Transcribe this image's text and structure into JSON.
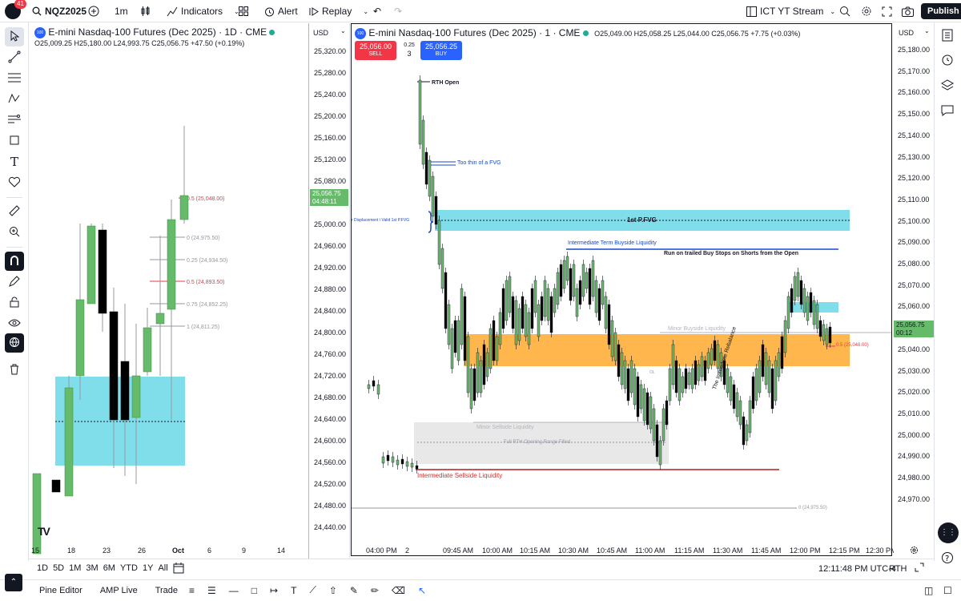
{
  "topbar": {
    "notif_count": "41",
    "symbol": "NQZ2025",
    "interval": "1m",
    "indicators": "Indicators",
    "alert": "Alert",
    "replay": "Replay",
    "layout_name": "ICT YT Stream",
    "publish": "Publish"
  },
  "left_chart": {
    "title": "E-mini Nasdaq-100 Futures (Dec 2025) · 1D · CME",
    "ohlc": "O25,009.25 H25,180.00 L24,993.75 C25,056.75 +47.50 (+0.19%)",
    "currency": "USD",
    "price_tag": "25,056.75",
    "countdown": "04:48:11",
    "dates": [
      "15",
      "18",
      "23",
      "26",
      "Oct",
      "6",
      "9",
      "14"
    ],
    "fib_labels": [
      "0.5 (25,048.00)",
      "0 (24,975.50)",
      "0.25 (24,934.50)",
      "0.5 (24,893.50)",
      "0.75 (24,852.25)",
      "1 (24,811.25)"
    ]
  },
  "price_axis_left": [
    "25,320.00",
    "25,280.00",
    "25,240.00",
    "25,200.00",
    "25,160.00",
    "25,120.00",
    "25,080.00",
    "25,000.00",
    "24,960.00",
    "24,920.00",
    "24,880.00",
    "24,840.00",
    "24,800.00",
    "24,760.00",
    "24,720.00",
    "24,680.00",
    "24,640.00",
    "24,600.00",
    "24,560.00",
    "24,520.00",
    "24,480.00",
    "24,440.00"
  ],
  "right_chart": {
    "title": "E-mini Nasdaq-100 Futures (Dec 2025) · 1 · CME",
    "ohlc": "O25,049.00 H25,058.25 L25,044.00 C25,056.75 +7.75 (+0.03%)",
    "currency": "USD",
    "sell_price": "25,056.00",
    "sell_label": "SELL",
    "spread": "0.25",
    "qty": "3",
    "buy_price": "25,056.25",
    "buy_label": "BUY",
    "price_tag": "25,056.75",
    "countdown": "00:12",
    "times": [
      "04:00 PM",
      "2",
      "09:45 AM",
      "10:00 AM",
      "10:15 AM",
      "10:30 AM",
      "10:45 AM",
      "11:00 AM",
      "11:15 AM",
      "11:30 AM",
      "11:45 AM",
      "12:00 PM",
      "12:15 PM",
      "12:30 PM"
    ],
    "annotations": {
      "rth_open": "RTH Open",
      "too_thin": "Too thin of a FVG",
      "displacement": "r Displacement \\ Valid 1st P.FVG",
      "first_pfvg": "1st P.FVG",
      "int_buyside": "Intermediate Term Buyside Liquidity",
      "run_on": "Run on trailed Buy Stops on Shorts from the Open",
      "minor_buyside": "Minor Buyside Liquidity",
      "minor_sellside": "Minor Sellside Liquidity",
      "full_rth": "Full RTH Opening Range Filled",
      "int_sellside": "Intermediate Sellside Liquidity",
      "fib_half": "0.5 (25,048.00)",
      "fib_zero": "0 (24,975.50)",
      "ol": "OL",
      "diag": "The Immediate Rebalance"
    }
  },
  "price_axis_right": [
    "25,180.00",
    "25,170.00",
    "25,160.00",
    "25,150.00",
    "25,140.00",
    "25,130.00",
    "25,120.00",
    "25,110.00",
    "25,100.00",
    "25,090.00",
    "25,080.00",
    "25,070.00",
    "25,060.00",
    "25,050.00",
    "25,040.00",
    "25,030.00",
    "25,020.00",
    "25,010.00",
    "25,000.00",
    "24,990.00",
    "24,980.00",
    "24,970.00"
  ],
  "bottom": {
    "ranges": [
      "1D",
      "5D",
      "1M",
      "3M",
      "6M",
      "YTD",
      "1Y",
      "All"
    ],
    "clock": "12:11:48 PM UTC-4",
    "session": "RTH"
  },
  "footer": {
    "tabs": [
      "Pine Editor",
      "AMP Live",
      "Trade"
    ]
  },
  "colors": {
    "up": "#66bb6a",
    "down": "#000000",
    "fvg": "#80deea",
    "premium": "#ffb74d",
    "accent": "#2962ff",
    "sell": "#f23645",
    "buy": "#2962ff"
  }
}
